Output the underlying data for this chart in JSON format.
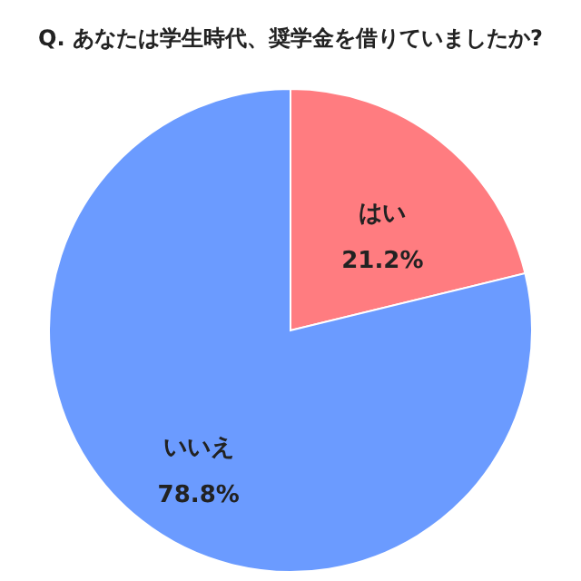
{
  "chart_data": {
    "type": "pie",
    "title": "Q. あなたは学生時代、奨学金を借りていましたか?",
    "categories": [
      "はい",
      "いいえ"
    ],
    "values": [
      21.2,
      78.8
    ],
    "colors": [
      "#ff7c80",
      "#6b9bff"
    ],
    "value_labels": [
      "21.2%",
      "78.8%"
    ],
    "legend": false
  }
}
